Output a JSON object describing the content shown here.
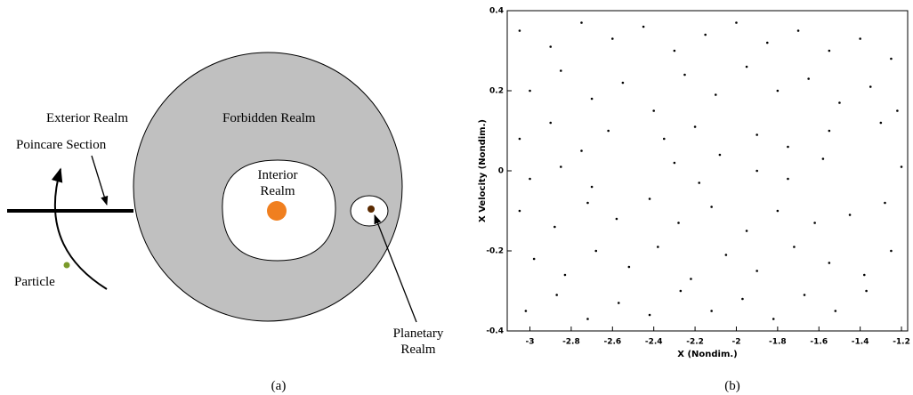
{
  "panel_a": {
    "labels": {
      "exterior": "Exterior Realm",
      "forbidden": "Forbidden Realm",
      "poincare": "Poincare Section",
      "interior": [
        "Interior",
        "Realm"
      ],
      "particle": "Particle",
      "planetary": [
        "Planetary",
        "Realm"
      ]
    },
    "caption": "(a)"
  },
  "panel_b": {
    "caption": "(b)"
  },
  "chart_data": {
    "type": "scatter",
    "xlabel": "X (Nondim.)",
    "ylabel": "X Velocity (Nondim.)",
    "color": "#000000",
    "xlim": [
      -3.11,
      -1.17
    ],
    "ylim": [
      -0.4,
      0.4
    ],
    "xticks": [
      -3,
      -2.8,
      -2.6,
      -2.4,
      -2.2,
      -2,
      -1.8,
      -1.6,
      -1.4,
      -1.2
    ],
    "yticks": [
      -0.4,
      -0.2,
      0,
      0.2,
      0.4
    ],
    "x": [
      -3.05,
      -2.9,
      -2.75,
      -2.6,
      -2.45,
      -2.3,
      -2.15,
      -2.0,
      -1.85,
      -1.7,
      -1.55,
      -1.4,
      -1.25,
      -3.0,
      -2.85,
      -2.7,
      -2.55,
      -2.4,
      -2.25,
      -2.1,
      -1.95,
      -1.8,
      -1.65,
      -1.5,
      -1.35,
      -1.22,
      -3.05,
      -2.9,
      -2.75,
      -2.62,
      -2.35,
      -2.2,
      -2.08,
      -1.9,
      -1.75,
      -1.55,
      -1.3,
      -3.0,
      -2.85,
      -2.7,
      -2.3,
      -2.18,
      -1.9,
      -1.75,
      -1.58,
      -1.2,
      -3.05,
      -2.88,
      -2.72,
      -2.58,
      -2.42,
      -2.28,
      -2.12,
      -1.95,
      -1.8,
      -1.62,
      -1.45,
      -1.28,
      -2.98,
      -2.83,
      -2.68,
      -2.52,
      -2.38,
      -2.22,
      -2.05,
      -1.9,
      -1.72,
      -1.55,
      -1.38,
      -1.25,
      -3.02,
      -2.87,
      -2.72,
      -2.57,
      -2.42,
      -2.27,
      -2.12,
      -1.97,
      -1.82,
      -1.67,
      -1.52,
      -1.37
    ],
    "values": [
      0.35,
      0.31,
      0.37,
      0.33,
      0.36,
      0.3,
      0.34,
      0.37,
      0.32,
      0.35,
      0.3,
      0.33,
      0.28,
      0.2,
      0.25,
      0.18,
      0.22,
      0.15,
      0.24,
      0.19,
      0.26,
      0.2,
      0.23,
      0.17,
      0.21,
      0.15,
      0.08,
      0.12,
      0.05,
      0.1,
      0.08,
      0.11,
      0.04,
      0.09,
      0.06,
      0.1,
      0.12,
      -0.02,
      0.01,
      -0.04,
      0.02,
      -0.03,
      0.0,
      -0.02,
      0.03,
      0.01,
      -0.1,
      -0.14,
      -0.08,
      -0.12,
      -0.07,
      -0.13,
      -0.09,
      -0.15,
      -0.1,
      -0.13,
      -0.11,
      -0.08,
      -0.22,
      -0.26,
      -0.2,
      -0.24,
      -0.19,
      -0.27,
      -0.21,
      -0.25,
      -0.19,
      -0.23,
      -0.26,
      -0.2,
      -0.35,
      -0.31,
      -0.37,
      -0.33,
      -0.36,
      -0.3,
      -0.35,
      -0.32,
      -0.37,
      -0.31,
      -0.35,
      -0.3
    ]
  }
}
